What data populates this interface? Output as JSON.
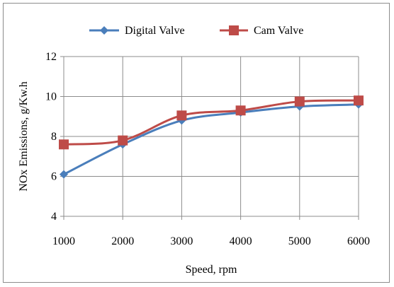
{
  "chart_data": {
    "type": "line",
    "title": "",
    "xlabel": "Speed, rpm",
    "ylabel": "NOx Emissions, g/Kw.h",
    "x": [
      1000,
      2000,
      3000,
      4000,
      5000,
      6000
    ],
    "x_ticks": [
      "1000",
      "2000",
      "3000",
      "4000",
      "5000",
      "6000"
    ],
    "xlim": [
      1000,
      6000
    ],
    "ylim": [
      4,
      12
    ],
    "y_ticks": [
      4,
      6,
      8,
      10,
      12
    ],
    "grid": true,
    "legend_position": "top",
    "series": [
      {
        "name": "Digital Valve",
        "color": "#4a7ebb",
        "marker": "diamond",
        "values": [
          6.1,
          7.6,
          8.8,
          9.2,
          9.5,
          9.6
        ]
      },
      {
        "name": "Cam Valve",
        "color": "#be4b48",
        "marker": "square",
        "values": [
          7.6,
          7.8,
          9.05,
          9.3,
          9.75,
          9.8
        ]
      }
    ]
  }
}
